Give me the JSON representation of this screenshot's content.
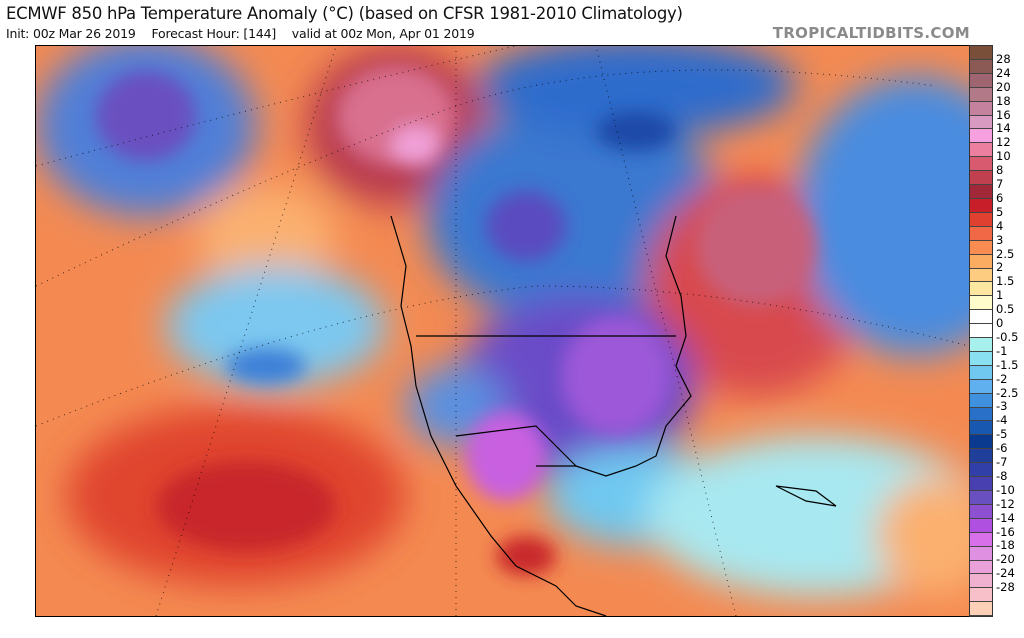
{
  "header": {
    "title": "ECMWF 850 hPa Temperature Anomaly (°C) (based on CFSR 1981-2010 Climatology)",
    "init": "Init: 00z Mar 26 2019",
    "forecast_hour": "Forecast Hour: [144]",
    "valid": "valid at 00z Mon, Apr 01 2019",
    "brand": "TROPICALTIDBITS.COM"
  },
  "colorbar": {
    "labels": [
      "28",
      "24",
      "20",
      "18",
      "16",
      "14",
      "12",
      "10",
      "8",
      "7",
      "6",
      "5",
      "4",
      "3",
      "2.5",
      "2",
      "1.5",
      "1",
      "0.5",
      "0",
      "-0.5",
      "-1",
      "-1.5",
      "-2",
      "-2.5",
      "-3",
      "-4",
      "-5",
      "-6",
      "-7",
      "-8",
      "-10",
      "-12",
      "-14",
      "-16",
      "-18",
      "-20",
      "-24",
      "-28"
    ],
    "colors": [
      "#7a4f3a",
      "#8c5a55",
      "#9e6570",
      "#b27a88",
      "#c4829e",
      "#d89ac0",
      "#f7a0e0",
      "#ec7ea0",
      "#d85a6e",
      "#c0404f",
      "#a02838",
      "#c81e2a",
      "#e04030",
      "#f06845",
      "#f98c50",
      "#fcac60",
      "#fdcc80",
      "#fde6a0",
      "#fffccc",
      "#ffffff",
      "#ffffff",
      "#a8f0ec",
      "#88e0f0",
      "#70c8f0",
      "#60b0f0",
      "#4090e0",
      "#2870c8",
      "#1858b0",
      "#0a3a90",
      "#203f9a",
      "#3040a8",
      "#4840b0",
      "#6850c0",
      "#8c50d0",
      "#b050e0",
      "#d870ea",
      "#e090e0",
      "#eaa0d8",
      "#f0b0d0",
      "#f8c0c8",
      "#ffd0b8"
    ]
  }
}
